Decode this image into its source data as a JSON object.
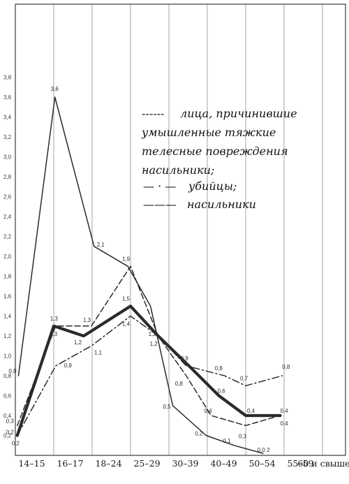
{
  "chart_data": {
    "type": "line",
    "categories": [
      "14–15",
      "16–17",
      "18–24",
      "25–29",
      "30–39",
      "40–49",
      "50–54",
      "55–59",
      "60 и свыше"
    ],
    "ylim": [
      0,
      4.0
    ],
    "yticks": [
      "0,2",
      "0,4",
      "0,6",
      "0,8",
      "1,0",
      "1,2",
      "1,4",
      "1,6",
      "1,8",
      "2,0",
      "2,2",
      "2,4",
      "2,6",
      "2,8",
      "3,0",
      "3,2",
      "3,4",
      "3,6",
      "3,8"
    ],
    "grid": true,
    "legend_placement": "upper-right",
    "legend": {
      "line1_dash": "------",
      "line1": "лица, причинившие",
      "line2": "умышленные тяжкие",
      "line3": "телесные повреждения",
      "line4": "насильники;",
      "line5_dash": "— · —",
      "line5": "убийцы;",
      "line6_dash": "———",
      "line6": "насильники"
    },
    "series": [
      {
        "style": "solid-thin",
        "x": [
          0.08,
          1.03,
          2.05,
          2.93,
          3.52,
          4.1,
          4.97,
          5.7,
          6.45
        ],
        "y": [
          0.8,
          3.6,
          2.1,
          1.9,
          1.5,
          0.5,
          0.2,
          0.1,
          0.02
        ],
        "labels": [
          "0,8",
          "3,6",
          "2,1",
          "",
          "",
          "0,5",
          "0,2",
          "0,1",
          "0,0 2"
        ],
        "label_dx": [
          -14,
          -6,
          4,
          0,
          0,
          -14,
          -16,
          -16,
          -8
        ],
        "label_dy": [
          -4,
          -9,
          0,
          0,
          0,
          4,
          0,
          -4,
          -2
        ]
      },
      {
        "style": "double",
        "x": [
          0.05,
          1.0,
          1.78,
          3.0,
          3.72,
          4.52,
          5.3,
          6.0,
          6.9
        ],
        "y": [
          0.2,
          1.3,
          1.2,
          1.5,
          1.2,
          0.9,
          0.6,
          0.4,
          0.4
        ],
        "labels": [
          "0,2",
          "1,3",
          "1,2",
          "1,5",
          "1,2",
          "0,9",
          "0,6",
          "0,4",
          "0,4"
        ],
        "label_dx": [
          -16,
          -6,
          -14,
          -12,
          -14,
          -12,
          -2,
          2,
          0
        ],
        "label_dy": [
          -2,
          14,
          12,
          -8,
          0,
          -8,
          -4,
          -4,
          -4
        ]
      },
      {
        "style": "dashed",
        "x": [
          0.05,
          1.05,
          1.98,
          3.0,
          3.72,
          4.45,
          5.1,
          6.0,
          6.9
        ],
        "y": [
          0.3,
          1.3,
          1.3,
          1.9,
          1.2,
          0.8,
          0.4,
          0.3,
          0.4
        ],
        "labels": [
          "0,3",
          "1,3",
          "1,3",
          "1,9",
          "1,2",
          "0,8",
          "0,4",
          "0,3",
          "0,4"
        ],
        "label_dx": [
          -16,
          -8,
          -12,
          -12,
          -12,
          -16,
          -10,
          -10,
          0
        ],
        "label_dy": [
          -4,
          -8,
          -6,
          -8,
          14,
          14,
          -4,
          18,
          14
        ]
      },
      {
        "style": "dashdot",
        "x": [
          0.05,
          1.05,
          1.98,
          3.0,
          3.72,
          4.45,
          5.45,
          6.0,
          6.95
        ],
        "y": [
          0.2,
          0.9,
          1.1,
          1.4,
          1.2,
          0.9,
          0.8,
          0.7,
          0.8
        ],
        "labels": [
          "0,2",
          "0,9",
          "1,1",
          "1,4",
          "",
          "",
          "0,8",
          "0,7",
          "0,8"
        ],
        "label_dx": [
          -8,
          12,
          4,
          -12,
          0,
          0,
          -14,
          -8,
          0
        ],
        "label_dy": [
          14,
          2,
          12,
          14,
          0,
          0,
          -8,
          -8,
          -10
        ]
      }
    ]
  }
}
